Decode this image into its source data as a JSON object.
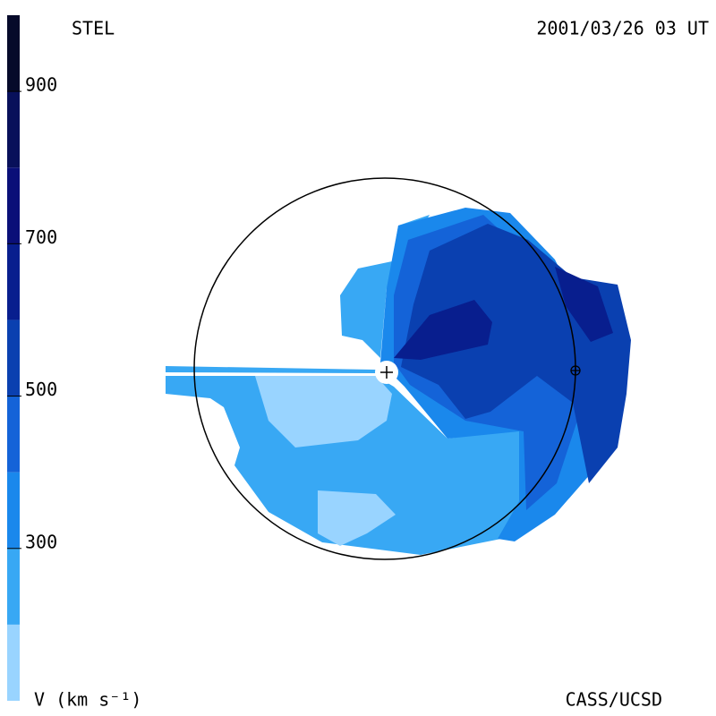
{
  "chart_data": {
    "type": "velocity-map",
    "title": "STEL",
    "subtitle": "2001/03/26 03 UT",
    "credit": "CASS/UCSD",
    "colorbar": {
      "label": "V (km s⁻¹)",
      "lim": [
        100,
        1000
      ],
      "ticks": [
        300,
        500,
        700,
        900
      ],
      "band_edges": [
        200,
        300,
        400,
        500,
        600,
        700,
        800,
        900
      ],
      "band_colors": [
        "#99d4ff",
        "#38a8f4",
        "#1a88ec",
        "#1463d8",
        "#0a40b0",
        "#081e8e",
        "#0a0f78",
        "#08105a",
        "#060a2a"
      ]
    },
    "regions": [
      {
        "value": 250
      },
      {
        "value": 250
      },
      {
        "value": 250
      },
      {
        "value": 150
      },
      {
        "value": 150
      },
      {
        "value": 350
      },
      {
        "value": 450
      },
      {
        "value": 550
      },
      {
        "value": 650
      },
      {
        "value": 650
      }
    ]
  }
}
